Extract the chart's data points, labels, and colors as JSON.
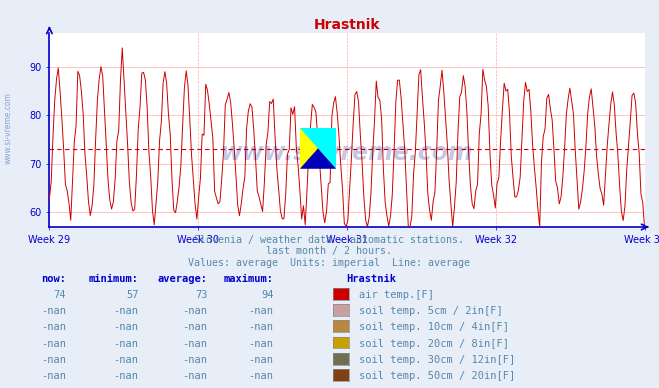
{
  "title": "Hrastnik",
  "title_color": "#cc0000",
  "bg_color": "#e8eef8",
  "plot_bg_color": "#ffffff",
  "grid_color": "#ffaaaa",
  "grid_color_v": "#ddddff",
  "axis_color": "#0000cc",
  "tick_color": "#0000cc",
  "y_ticks": [
    60,
    70,
    80,
    90
  ],
  "ylim": [
    57,
    97
  ],
  "xlim_days": [
    0,
    28
  ],
  "avg_line_y": 73,
  "line_color": "#cc0000",
  "subtitle_lines": [
    "Slovenia / weather data - automatic stations.",
    "last month / 2 hours.",
    "Values: average  Units: imperial  Line: average"
  ],
  "subtitle_color": "#5588aa",
  "table_header": [
    "now:",
    "minimum:",
    "average:",
    "maximum:",
    "Hrastnik"
  ],
  "table_header_color": "#0000cc",
  "table_rows": [
    {
      "now": "74",
      "min": "57",
      "avg": "73",
      "max": "94",
      "label": "air temp.[F]",
      "color": "#cc0000"
    },
    {
      "now": "-nan",
      "min": "-nan",
      "avg": "-nan",
      "max": "-nan",
      "label": "soil temp. 5cm / 2in[F]",
      "color": "#c8a0a0"
    },
    {
      "now": "-nan",
      "min": "-nan",
      "avg": "-nan",
      "max": "-nan",
      "label": "soil temp. 10cm / 4in[F]",
      "color": "#b88840"
    },
    {
      "now": "-nan",
      "min": "-nan",
      "avg": "-nan",
      "max": "-nan",
      "label": "soil temp. 20cm / 8in[F]",
      "color": "#c8a000"
    },
    {
      "now": "-nan",
      "min": "-nan",
      "avg": "-nan",
      "max": "-nan",
      "label": "soil temp. 30cm / 12in[F]",
      "color": "#707050"
    },
    {
      "now": "-nan",
      "min": "-nan",
      "avg": "-nan",
      "max": "-nan",
      "label": "soil temp. 50cm / 20in[F]",
      "color": "#804010"
    }
  ],
  "watermark_text": "www.si-vreme.com",
  "watermark_color": "#000088",
  "watermark_alpha": 0.22,
  "sidebar_text": "www.si-vreme.com",
  "sidebar_color": "#3355aa",
  "sidebar_alpha": 0.5
}
